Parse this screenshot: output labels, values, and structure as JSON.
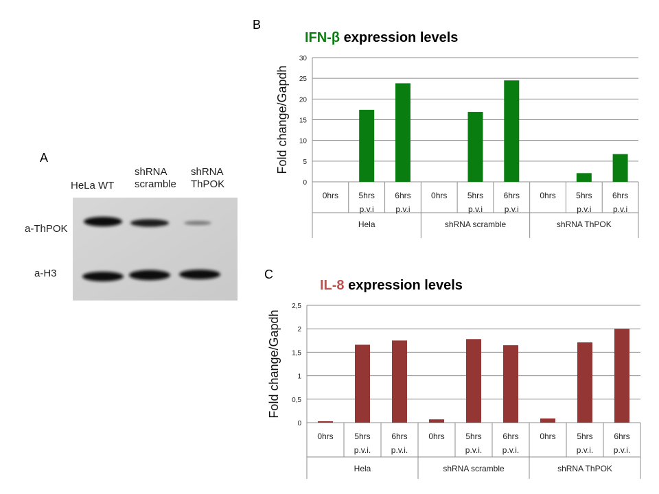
{
  "panel_letters": {
    "a": "A",
    "b": "B",
    "c": "C"
  },
  "blot": {
    "columns": [
      {
        "line1": "",
        "line2": "HeLa WT"
      },
      {
        "line1": "shRNA",
        "line2": "scramble"
      },
      {
        "line1": "shRNA",
        "line2": "ThPOK"
      }
    ],
    "rows": [
      "a-ThPOK",
      "a-H3"
    ],
    "band_intensity": {
      "a-ThPOK": [
        1.0,
        0.8,
        0.2
      ],
      "a-H3": [
        1.0,
        1.0,
        0.95
      ]
    }
  },
  "titles": {
    "b_prefix": "IFN-β",
    "b_suffix": " expression levels",
    "c_prefix": "IL-8",
    "c_suffix": " expression levels"
  },
  "chart_data": [
    {
      "type": "bar",
      "title": "IFN-β expression levels",
      "ylabel": "Fold change/Gapdh",
      "ylim": [
        0,
        30
      ],
      "yticks": [
        "0",
        "5",
        "10",
        "15",
        "20",
        "25",
        "30"
      ],
      "categories": [
        {
          "line1": "0hrs",
          "line2": ""
        },
        {
          "line1": "5hrs",
          "line2": "p.v.i"
        },
        {
          "line1": "6hrs",
          "line2": "p.v.i"
        },
        {
          "line1": "0hrs",
          "line2": ""
        },
        {
          "line1": "5hrs",
          "line2": "p.v.i"
        },
        {
          "line1": "6hrs",
          "line2": "p.v.i"
        },
        {
          "line1": "0hrs",
          "line2": ""
        },
        {
          "line1": "5hrs",
          "line2": "p.v.i"
        },
        {
          "line1": "6hrs",
          "line2": "p.v.i"
        }
      ],
      "groups": [
        "Hela",
        "shRNA scramble",
        "shRNA ThPOK"
      ],
      "values": [
        0,
        17.4,
        23.8,
        0,
        16.9,
        24.5,
        0,
        2.1,
        6.7
      ],
      "color": "#0a7d10",
      "title_color": "#0a7d10",
      "grid": true
    },
    {
      "type": "bar",
      "title": "IL-8 expression levels",
      "ylabel": "Fold change/Gapdh",
      "ylim": [
        0,
        2.5
      ],
      "yticks": [
        "0",
        "0,5",
        "1",
        "1,5",
        "2",
        "2,5"
      ],
      "categories": [
        {
          "line1": "0hrs",
          "line2": ""
        },
        {
          "line1": "5hrs",
          "line2": "p.v.i."
        },
        {
          "line1": "6hrs",
          "line2": "p.v.i."
        },
        {
          "line1": "0hrs",
          "line2": ""
        },
        {
          "line1": "5hrs",
          "line2": "p.v.i."
        },
        {
          "line1": "6hrs",
          "line2": "p.v.i."
        },
        {
          "line1": "0hrs",
          "line2": ""
        },
        {
          "line1": "5hrs",
          "line2": "p.v.i."
        },
        {
          "line1": "6hrs",
          "line2": "p.v.i."
        }
      ],
      "groups": [
        "Hela",
        "shRNA scramble",
        "shRNA ThPOK"
      ],
      "values": [
        0.03,
        1.66,
        1.75,
        0.07,
        1.78,
        1.65,
        0.09,
        1.71,
        2.0
      ],
      "color": "#943634",
      "title_color": "#c0504d",
      "grid": true
    }
  ]
}
